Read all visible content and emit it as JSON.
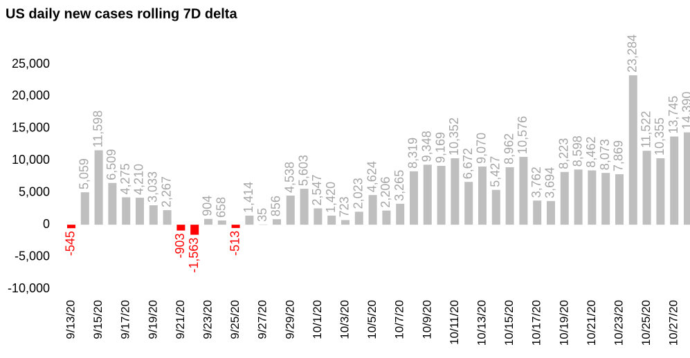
{
  "chart_data": {
    "type": "bar",
    "title": "US daily new cases rolling 7D delta",
    "categories": [
      "9/13/20",
      null,
      "9/15/20",
      null,
      "9/17/20",
      null,
      "9/19/20",
      null,
      "9/21/20",
      null,
      "9/23/20",
      null,
      "9/25/20",
      null,
      "9/27/20",
      null,
      "9/29/20",
      null,
      "10/1/20",
      null,
      "10/3/20",
      null,
      "10/5/20",
      null,
      "10/7/20",
      null,
      "10/9/20",
      null,
      "10/11/20",
      null,
      "10/13/20",
      null,
      "10/15/20",
      null,
      "10/17/20",
      null,
      "10/19/20",
      null,
      "10/21/20",
      null,
      "10/23/20",
      null,
      "10/25/20",
      null,
      "10/27/20",
      null
    ],
    "values": [
      -545,
      5059,
      11598,
      6509,
      4275,
      4210,
      3033,
      2267,
      -903,
      -1563,
      904,
      658,
      -513,
      1414,
      35,
      856,
      4538,
      5603,
      2547,
      1420,
      723,
      2023,
      4624,
      2206,
      3265,
      8319,
      9348,
      9169,
      10352,
      6672,
      9070,
      5427,
      8962,
      10576,
      3762,
      3694,
      8223,
      8598,
      8462,
      8073,
      7869,
      23284,
      11522,
      10355,
      13745,
      14390
    ],
    "value_labels": [
      "-545",
      "5,059",
      "11,598",
      "6,509",
      "4,275",
      "4,210",
      "3,033",
      "2,267",
      "-903",
      "-1,563",
      "904",
      "658",
      "-513",
      "1,414",
      "35",
      "856",
      "4,538",
      "5,603",
      "2,547",
      "1,420",
      "723",
      "2,023",
      "4,624",
      "2,206",
      "3,265",
      "8,319",
      "9,348",
      "9,169",
      "10,352",
      "6,672",
      "9,070",
      "5,427",
      "8,962",
      "10,576",
      "3,762",
      "3,694",
      "8,223",
      "8,598",
      "8,462",
      "8,073",
      "7,869",
      "23,284",
      "11,522",
      "10,355",
      "13,745",
      "14,390"
    ],
    "color": "#bfbfbf",
    "negative_color": "#ff0000",
    "ylim": [
      -10000,
      25000
    ],
    "yticks": [
      {
        "value": -10000,
        "label": "-10,000"
      },
      {
        "value": -5000,
        "label": "-5,000"
      },
      0,
      {
        "value": 5000,
        "label": "5,000"
      },
      {
        "value": 10000,
        "label": "10,000"
      },
      {
        "value": 15000,
        "label": "15,000"
      },
      {
        "value": 20000,
        "label": "20,000"
      },
      {
        "value": 25000,
        "label": "25,000"
      }
    ],
    "grid": false
  }
}
